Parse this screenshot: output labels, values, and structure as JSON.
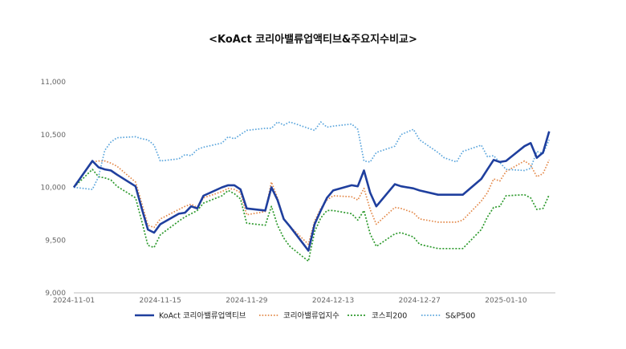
{
  "chart_data": {
    "type": "line",
    "title": "<KoAct 코리아밸류업액티브&주요지수비교>",
    "xlabel": "",
    "ylabel": "",
    "ylim": [
      9000,
      11000
    ],
    "yticks": [
      9000,
      9500,
      10000,
      10500,
      11000
    ],
    "ytick_labels": [
      "9,000",
      "9,500",
      "10,000",
      "10,500",
      "11,000"
    ],
    "xlim": [
      "2024-11-01",
      "2025-01-18"
    ],
    "xticks": [
      "2024-11-01",
      "2024-11-15",
      "2024-11-29",
      "2024-12-13",
      "2024-12-27",
      "2025-01-10"
    ],
    "grid": false,
    "legend_position": "bottom",
    "series": [
      {
        "name": "KoAct 코리아밸류업액티브",
        "color": "#1f3f9e",
        "style": "solid",
        "x": [
          "2024-11-01",
          "2024-11-04",
          "2024-11-05",
          "2024-11-06",
          "2024-11-07",
          "2024-11-08",
          "2024-11-11",
          "2024-11-12",
          "2024-11-13",
          "2024-11-14",
          "2024-11-15",
          "2024-11-18",
          "2024-11-19",
          "2024-11-20",
          "2024-11-21",
          "2024-11-22",
          "2024-11-25",
          "2024-11-26",
          "2024-11-27",
          "2024-11-28",
          "2024-11-29",
          "2024-12-02",
          "2024-12-03",
          "2024-12-04",
          "2024-12-05",
          "2024-12-06",
          "2024-12-09",
          "2024-12-10",
          "2024-12-11",
          "2024-12-12",
          "2024-12-13",
          "2024-12-16",
          "2024-12-17",
          "2024-12-18",
          "2024-12-19",
          "2024-12-20",
          "2024-12-23",
          "2024-12-24",
          "2024-12-26",
          "2024-12-27",
          "2024-12-30",
          "2025-01-02",
          "2025-01-03",
          "2025-01-06",
          "2025-01-07",
          "2025-01-08",
          "2025-01-09",
          "2025-01-10",
          "2025-01-13",
          "2025-01-14",
          "2025-01-15",
          "2025-01-16",
          "2025-01-17"
        ],
        "values": [
          10000,
          10250,
          10190,
          10170,
          10160,
          10120,
          10010,
          9800,
          9600,
          9570,
          9650,
          9750,
          9760,
          9820,
          9800,
          9920,
          10000,
          10020,
          10020,
          9980,
          9800,
          9780,
          10000,
          9880,
          9700,
          9630,
          9400,
          9650,
          9780,
          9900,
          9970,
          10020,
          10010,
          10160,
          9950,
          9820,
          10030,
          10010,
          9990,
          9970,
          9930,
          9930,
          9930,
          10080,
          10170,
          10260,
          10240,
          10250,
          10390,
          10420,
          10280,
          10330,
          10530
        ]
      },
      {
        "name": "코리아밸류업지수",
        "color": "#e3894a",
        "style": "dotted",
        "x": [
          "2024-11-01",
          "2024-11-04",
          "2024-11-05",
          "2024-11-06",
          "2024-11-07",
          "2024-11-08",
          "2024-11-11",
          "2024-11-12",
          "2024-11-13",
          "2024-11-14",
          "2024-11-15",
          "2024-11-18",
          "2024-11-19",
          "2024-11-20",
          "2024-11-21",
          "2024-11-22",
          "2024-11-25",
          "2024-11-26",
          "2024-11-27",
          "2024-11-28",
          "2024-11-29",
          "2024-12-02",
          "2024-12-03",
          "2024-12-04",
          "2024-12-05",
          "2024-12-06",
          "2024-12-09",
          "2024-12-10",
          "2024-12-11",
          "2024-12-12",
          "2024-12-13",
          "2024-12-16",
          "2024-12-17",
          "2024-12-18",
          "2024-12-19",
          "2024-12-20",
          "2024-12-23",
          "2024-12-24",
          "2024-12-26",
          "2024-12-27",
          "2024-12-30",
          "2025-01-02",
          "2025-01-03",
          "2025-01-06",
          "2025-01-07",
          "2025-01-08",
          "2025-01-09",
          "2025-01-10",
          "2025-01-13",
          "2025-01-14",
          "2025-01-15",
          "2025-01-16",
          "2025-01-17"
        ],
        "values": [
          10000,
          10240,
          10250,
          10250,
          10230,
          10200,
          10050,
          9850,
          9640,
          9620,
          9700,
          9790,
          9820,
          9840,
          9810,
          9900,
          9960,
          9990,
          9980,
          9950,
          9740,
          9770,
          10050,
          9900,
          9700,
          9630,
          9460,
          9680,
          9800,
          9880,
          9920,
          9910,
          9880,
          9990,
          9790,
          9650,
          9810,
          9800,
          9760,
          9700,
          9670,
          9670,
          9690,
          9870,
          9950,
          10080,
          10060,
          10150,
          10250,
          10210,
          10100,
          10130,
          10260
        ]
      },
      {
        "name": "코스피200",
        "color": "#2e9a2e",
        "style": "dotted",
        "x": [
          "2024-11-01",
          "2024-11-04",
          "2024-11-05",
          "2024-11-06",
          "2024-11-07",
          "2024-11-08",
          "2024-11-11",
          "2024-11-12",
          "2024-11-13",
          "2024-11-14",
          "2024-11-15",
          "2024-11-18",
          "2024-11-19",
          "2024-11-20",
          "2024-11-21",
          "2024-11-22",
          "2024-11-25",
          "2024-11-26",
          "2024-11-27",
          "2024-11-28",
          "2024-11-29",
          "2024-12-02",
          "2024-12-03",
          "2024-12-04",
          "2024-12-05",
          "2024-12-06",
          "2024-12-09",
          "2024-12-10",
          "2024-12-11",
          "2024-12-12",
          "2024-12-13",
          "2024-12-16",
          "2024-12-17",
          "2024-12-18",
          "2024-12-19",
          "2024-12-20",
          "2024-12-23",
          "2024-12-24",
          "2024-12-26",
          "2024-12-27",
          "2024-12-30",
          "2025-01-02",
          "2025-01-03",
          "2025-01-06",
          "2025-01-07",
          "2025-01-08",
          "2025-01-09",
          "2025-01-10",
          "2025-01-13",
          "2025-01-14",
          "2025-01-15",
          "2025-01-16",
          "2025-01-17"
        ],
        "values": [
          10000,
          10170,
          10100,
          10090,
          10070,
          10010,
          9900,
          9680,
          9450,
          9430,
          9550,
          9680,
          9720,
          9750,
          9780,
          9850,
          9920,
          9970,
          9940,
          9890,
          9660,
          9640,
          9820,
          9640,
          9520,
          9440,
          9300,
          9580,
          9710,
          9780,
          9780,
          9750,
          9690,
          9780,
          9560,
          9440,
          9560,
          9570,
          9530,
          9460,
          9420,
          9420,
          9420,
          9600,
          9720,
          9810,
          9820,
          9920,
          9930,
          9900,
          9790,
          9800,
          9930
        ]
      },
      {
        "name": "S&P500",
        "color": "#5aa5dc",
        "style": "dotted",
        "x": [
          "2024-11-01",
          "2024-11-04",
          "2024-11-05",
          "2024-11-06",
          "2024-11-07",
          "2024-11-08",
          "2024-11-11",
          "2024-11-12",
          "2024-11-13",
          "2024-11-14",
          "2024-11-15",
          "2024-11-18",
          "2024-11-19",
          "2024-11-20",
          "2024-11-21",
          "2024-11-22",
          "2024-11-25",
          "2024-11-26",
          "2024-11-27",
          "2024-11-29",
          "2024-12-02",
          "2024-12-03",
          "2024-12-04",
          "2024-12-05",
          "2024-12-06",
          "2024-12-09",
          "2024-12-10",
          "2024-12-11",
          "2024-12-12",
          "2024-12-13",
          "2024-12-16",
          "2024-12-17",
          "2024-12-18",
          "2024-12-19",
          "2024-12-20",
          "2024-12-23",
          "2024-12-24",
          "2024-12-26",
          "2024-12-27",
          "2024-12-30",
          "2024-12-31",
          "2025-01-02",
          "2025-01-03",
          "2025-01-06",
          "2025-01-07",
          "2025-01-08",
          "2025-01-10",
          "2025-01-13",
          "2025-01-14",
          "2025-01-15",
          "2025-01-16",
          "2025-01-17"
        ],
        "values": [
          10000,
          9980,
          10100,
          10350,
          10430,
          10470,
          10480,
          10460,
          10450,
          10400,
          10250,
          10270,
          10310,
          10300,
          10360,
          10380,
          10420,
          10480,
          10460,
          10540,
          10560,
          10560,
          10620,
          10590,
          10620,
          10560,
          10540,
          10620,
          10570,
          10580,
          10600,
          10550,
          10250,
          10240,
          10330,
          10390,
          10500,
          10550,
          10450,
          10330,
          10280,
          10240,
          10340,
          10400,
          10290,
          10300,
          10170,
          10160,
          10180,
          10340,
          10320,
          10450
        ]
      }
    ]
  }
}
